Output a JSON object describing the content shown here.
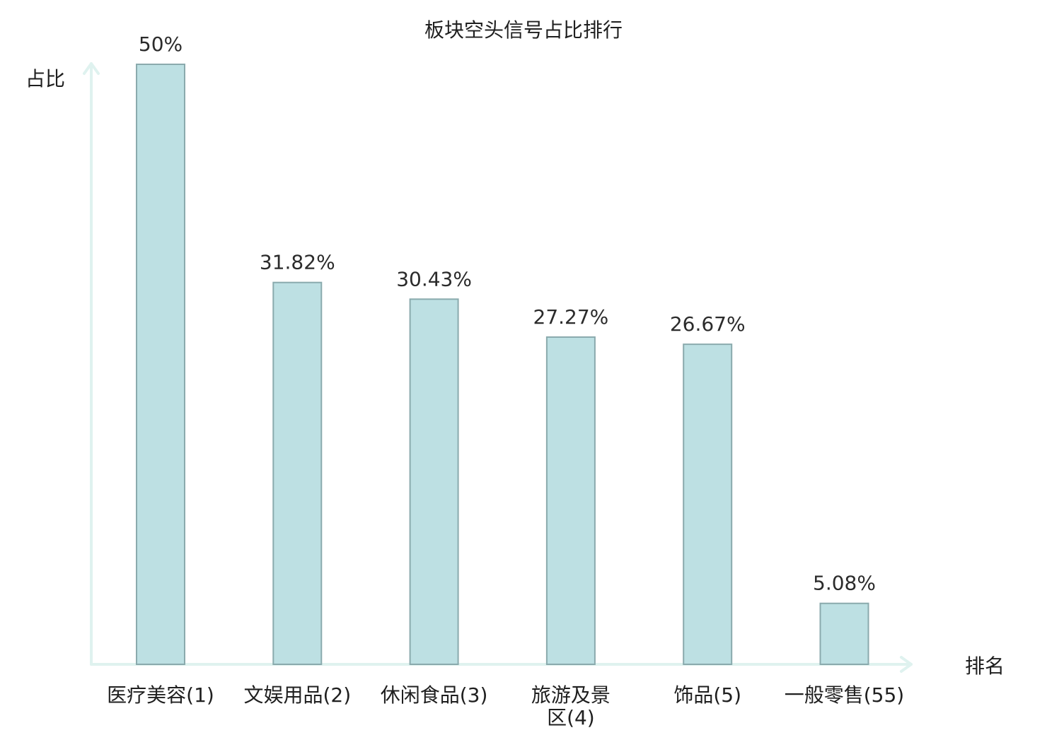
{
  "chart_data": {
    "type": "bar",
    "title": "板块空头信号占比排行",
    "ylabel": "占比",
    "xlabel": "排名",
    "categories": [
      {
        "name": "医疗美容",
        "rank": "(1)",
        "highlight": false
      },
      {
        "name": "文娱用品",
        "rank": "(2)",
        "highlight": false
      },
      {
        "name": "休闲食品",
        "rank": "(3)",
        "highlight": false
      },
      {
        "name": "旅游及景区",
        "rank": "(4)",
        "highlight": false
      },
      {
        "name": "饰品",
        "rank": "(5)",
        "highlight": false
      },
      {
        "name": "一般零售",
        "rank": "(55)",
        "highlight": true
      }
    ],
    "values": [
      50,
      31.82,
      30.43,
      27.27,
      26.67,
      5.08
    ],
    "value_labels": [
      "50%",
      "31.82%",
      "30.43%",
      "27.27%",
      "26.67%",
      "5.08%"
    ],
    "ylim": [
      0,
      50
    ],
    "grid": false,
    "colors": {
      "bar_fill": "#bde0e3",
      "bar_stroke": "#8aaaad",
      "axis": "#dff2ef",
      "highlight_text": "#e0201b",
      "text": "#1f1f1f"
    }
  }
}
